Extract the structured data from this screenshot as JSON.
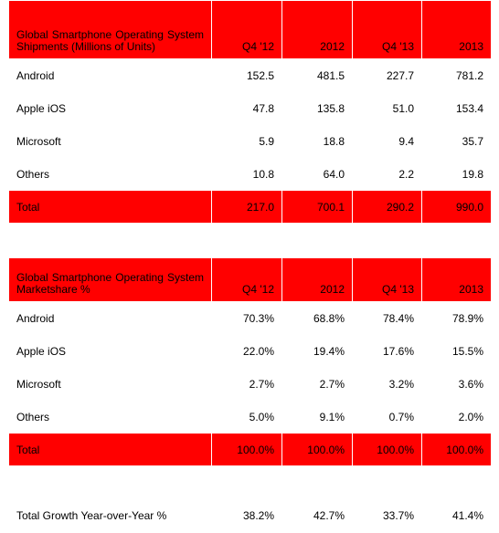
{
  "shipments": {
    "title": "Global Smartphone Operating System Shipments (Millions of Units)",
    "columns": [
      "Q4 '12",
      "2012",
      "Q4 '13",
      "2013"
    ],
    "rows": [
      {
        "label": "Android",
        "values": [
          "152.5",
          "481.5",
          "227.7",
          "781.2"
        ]
      },
      {
        "label": "Apple iOS",
        "values": [
          "47.8",
          "135.8",
          "51.0",
          "153.4"
        ]
      },
      {
        "label": "Microsoft",
        "values": [
          "5.9",
          "18.8",
          "9.4",
          "35.7"
        ]
      },
      {
        "label": "Others",
        "values": [
          "10.8",
          "64.0",
          "2.2",
          "19.8"
        ]
      }
    ],
    "total": {
      "label": "Total",
      "values": [
        "217.0",
        "700.1",
        "290.2",
        "990.0"
      ]
    }
  },
  "marketshare": {
    "title": "Global Smartphone Operating System Marketshare %",
    "columns": [
      "Q4 '12",
      "2012",
      "Q4 '13",
      "2013"
    ],
    "rows": [
      {
        "label": "Android",
        "values": [
          "70.3%",
          "68.8%",
          "78.4%",
          "78.9%"
        ]
      },
      {
        "label": "Apple iOS",
        "values": [
          "22.0%",
          "19.4%",
          "17.6%",
          "15.5%"
        ]
      },
      {
        "label": "Microsoft",
        "values": [
          "2.7%",
          "2.7%",
          "3.2%",
          "3.6%"
        ]
      },
      {
        "label": "Others",
        "values": [
          "5.0%",
          "9.1%",
          "0.7%",
          "2.0%"
        ]
      }
    ],
    "total": {
      "label": "Total",
      "values": [
        "100.0%",
        "100.0%",
        "100.0%",
        "100.0%"
      ]
    }
  },
  "growth": {
    "label": "Total Growth Year-over-Year %",
    "values": [
      "38.2%",
      "42.7%",
      "33.7%",
      "41.4%"
    ]
  },
  "colors": {
    "header_bg": "#ff0000",
    "total_bg": "#ff0000",
    "text": "#000000"
  }
}
